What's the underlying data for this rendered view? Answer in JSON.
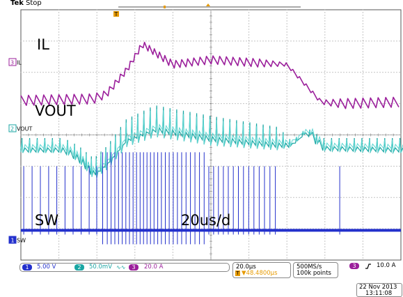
{
  "header": {
    "brand": "Tek",
    "run_state": "Stop"
  },
  "waveforms": {
    "il": {
      "marker_number": "3",
      "marker_label": "IL",
      "overlay_label": "IL",
      "color": "#9b1f9b"
    },
    "vout": {
      "marker_number": "2",
      "marker_label": "VOUT",
      "overlay_label": "VOUT",
      "color": "#1aa6a3"
    },
    "sw": {
      "marker_number": "1",
      "marker_label": "SW",
      "overlay_label": "SW",
      "color": "#2330cc"
    }
  },
  "annotation": {
    "timebase_text": "20us/d"
  },
  "status_bar": {
    "ch1": {
      "number": "1",
      "scale": "5.00 V",
      "color": "#2330cc"
    },
    "ch2": {
      "number": "2",
      "scale": "50.0mV",
      "suffix": "∿∿",
      "color": "#1aa6a3"
    },
    "ch3": {
      "number": "3",
      "scale": "20.0 A",
      "color": "#9b1f9b"
    },
    "horizontal": {
      "scale": "20.0µs",
      "position": "▼48.4800µs",
      "position_prefix": "T"
    },
    "acquisition": {
      "rate": "500MS/s",
      "points": "100k points"
    },
    "trigger": {
      "source": "3",
      "slope_icon": "rising-edge-icon",
      "level": "10.0 A"
    }
  },
  "footer": {
    "date": "22 Nov 2013",
    "time": "13:11:08"
  },
  "chart_data": {
    "type": "line",
    "title": "",
    "xlabel": "",
    "ylabel": "",
    "grid": true,
    "grid_divisions": {
      "x": 10,
      "y": 8
    },
    "time_per_division_us": 20,
    "xlim_us": [
      -100,
      100
    ],
    "series": [
      {
        "name": "IL",
        "channel": 3,
        "ylim_div": [
          -4,
          4
        ],
        "anchors": [
          {
            "t": -100,
            "y": 1.1,
            "ripple": 0.16,
            "period": 4.0
          },
          {
            "t": -62,
            "y": 1.15,
            "ripple": 0.16,
            "period": 4.0
          },
          {
            "t": -55,
            "y": 1.3,
            "ripple": 0.12,
            "period": 3.0
          },
          {
            "t": -44,
            "y": 2.1,
            "ripple": 0.1,
            "period": 2.5
          },
          {
            "t": -36,
            "y": 2.9,
            "ripple": 0.1,
            "period": 2.5
          },
          {
            "t": -20,
            "y": 2.25,
            "ripple": 0.12,
            "period": 3.0
          },
          {
            "t": 0,
            "y": 2.4,
            "ripple": 0.13,
            "period": 3.5
          },
          {
            "t": 25,
            "y": 2.3,
            "ripple": 0.13,
            "period": 3.5
          },
          {
            "t": 40,
            "y": 2.25,
            "ripple": 0.05,
            "period": 3.5
          },
          {
            "t": 58,
            "y": 1.05,
            "ripple": 0.06,
            "period": 3.5
          },
          {
            "t": 70,
            "y": 1.0,
            "ripple": 0.16,
            "period": 4.0
          },
          {
            "t": 100,
            "y": 1.05,
            "ripple": 0.16,
            "period": 4.0
          }
        ]
      },
      {
        "name": "VOUT",
        "channel": 2,
        "ylim_div": [
          -4,
          4
        ],
        "anchors": [
          {
            "t": -100,
            "y": -0.45,
            "spike": 0.35,
            "period": 4.0
          },
          {
            "t": -78,
            "y": -0.45,
            "spike": 0.35,
            "period": 4.0
          },
          {
            "t": -70,
            "y": -0.75,
            "spike": 0.4,
            "period": 3.0
          },
          {
            "t": -62,
            "y": -1.25,
            "spike": 0.5,
            "period": 2.5
          },
          {
            "t": -55,
            "y": -0.9,
            "spike": 0.55,
            "period": 2.5
          },
          {
            "t": -45,
            "y": -0.15,
            "spike": 0.65,
            "period": 3.0
          },
          {
            "t": -30,
            "y": 0.2,
            "spike": 0.75,
            "period": 3.5
          },
          {
            "t": 0,
            "y": -0.1,
            "spike": 0.7,
            "period": 3.5
          },
          {
            "t": 35,
            "y": -0.3,
            "spike": 0.55,
            "period": 3.5
          },
          {
            "t": 42,
            "y": -0.3,
            "spike": 0.1,
            "period": 3.5
          },
          {
            "t": 50,
            "y": 0.15,
            "spike": 0.08,
            "period": 3.5
          },
          {
            "t": 58,
            "y": -0.4,
            "spike": 0.3,
            "period": 4.0
          },
          {
            "t": 100,
            "y": -0.45,
            "spike": 0.35,
            "period": 4.0
          }
        ]
      },
      {
        "name": "SW",
        "channel": 1,
        "ylim_div": [
          -4,
          4
        ],
        "baseline_div": -3.05,
        "pulse_height_div": 2.05,
        "anchors": [
          {
            "t": -100,
            "period": 4.4
          },
          {
            "t": -65,
            "period": 4.2
          },
          {
            "t": -55,
            "period": 2.0
          },
          {
            "t": -35,
            "period": 1.8
          },
          {
            "t": -15,
            "period": 2.3
          },
          {
            "t": 5,
            "period": 2.6
          },
          {
            "t": 35,
            "period": 2.9
          },
          {
            "t": 45,
            "period": 999
          },
          {
            "t": 65,
            "period": 999
          },
          {
            "t": 68,
            "period": 3.6
          },
          {
            "t": 100,
            "period": 3.8
          }
        ]
      }
    ]
  }
}
